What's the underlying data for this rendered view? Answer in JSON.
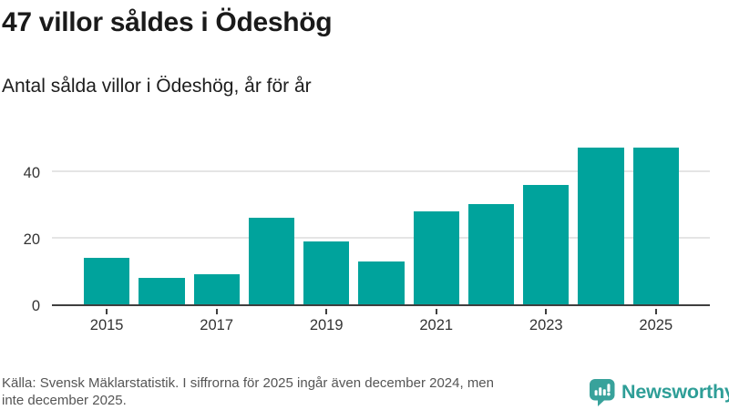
{
  "header": {
    "title": "47 villor såldes i Ödeshög",
    "subtitle": "Antal sålda villor i Ödeshög, år för år"
  },
  "chart_data": {
    "type": "bar",
    "title": "47 villor såldes i Ödeshög",
    "subtitle": "Antal sålda villor i Ödeshög, år för år",
    "categories": [
      "2015",
      "2016",
      "2017",
      "2018",
      "2019",
      "2020",
      "2021",
      "2022",
      "2023",
      "2024",
      "2025"
    ],
    "values": [
      14,
      8,
      9,
      26,
      19,
      13,
      28,
      30,
      36,
      47,
      47
    ],
    "xlabel": "",
    "ylabel": "",
    "ylim": [
      0,
      49.3
    ],
    "y_ticks": [
      0,
      20,
      40
    ],
    "x_tick_labels": [
      "2015",
      "2017",
      "2019",
      "2021",
      "2023",
      "2025"
    ],
    "x_label_every": 2,
    "grid": "horizontal-only",
    "legend": "none",
    "bar_color": "#00a39c",
    "axis_color": "#3f3f3f",
    "grid_color": "#e5e5e5",
    "tick_label_color": "#333333"
  },
  "footer": {
    "lines": [
      "Källa: Svensk Mäklarstatistik. I siffrorna för 2025 ingår även december 2024, men",
      "inte december 2025."
    ],
    "logo_text": "Newsworthy"
  },
  "colors": {
    "background": "#ffffff",
    "title_text": "#1a1a1a",
    "source_text": "#555555",
    "logo_icon": "#38a29b",
    "logo_text": "#2e9e97"
  }
}
